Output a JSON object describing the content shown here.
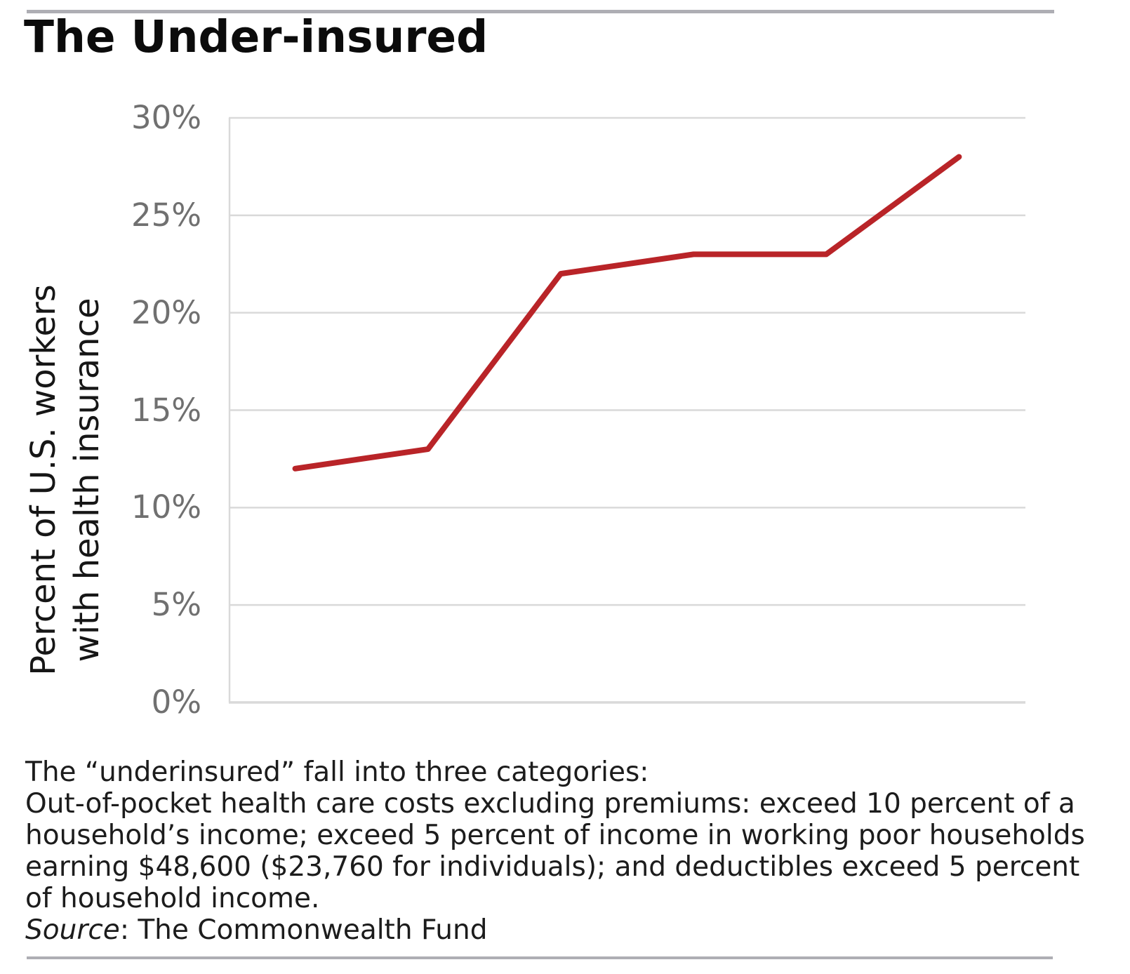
{
  "chart_data": {
    "type": "line",
    "title": "The Under-insured",
    "ylabel_lines": [
      "Percent of U.S. workers",
      "with health insurance"
    ],
    "values": [
      12,
      13,
      22,
      23,
      23,
      28
    ],
    "x_tick_labels_visible": false,
    "ylim": [
      0,
      30
    ],
    "ytick_values": [
      0,
      5,
      10,
      15,
      20,
      25,
      30
    ],
    "ytick_labels": [
      "0%",
      "5%",
      "10%",
      "15%",
      "20%",
      "25%",
      "30%"
    ],
    "grid": "horizontal",
    "legend": "none",
    "line_color": "#b92428",
    "gridline_color": "#d9d9d9",
    "tick_label_color": "#707070"
  },
  "footnote": {
    "line1": "The “underinsured” fall into three categories:",
    "body_lines": [
      "Out-of-pocket health care costs excluding premiums: exceed 10 percent of a",
      "household’s income; exceed 5 percent of income in working poor households",
      "earning $48,600 ($23,760 for individuals); and deductibles exceed 5 percent",
      "of household income."
    ],
    "source_label": "Source",
    "source_rest": ": The Commonwealth Fund"
  }
}
